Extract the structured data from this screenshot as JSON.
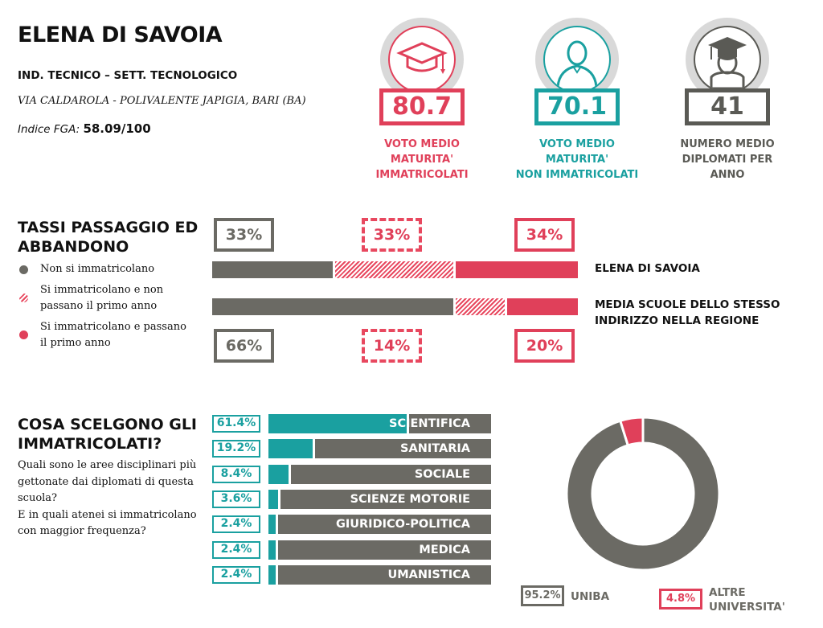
{
  "header": {
    "school": "ELENA DI SAVOIA",
    "track": "IND. TECNICO – SETT. TECNOLOGICO",
    "address": "VIA CALDAROLA - POLIVALENTE JAPIGIA, BARI (BA)",
    "fga_label": "Indice FGA:",
    "fga_value": "58.09/100"
  },
  "kpis": [
    {
      "value": "80.7",
      "label_line1": "VOTO MEDIO MATURITA'",
      "label_line2": "IMMATRICOLATI",
      "color": "#e0405a",
      "icon": "graduation-cap-icon"
    },
    {
      "value": "70.1",
      "label_line1": "VOTO MEDIO MATURITA'",
      "label_line2": "NON IMMATRICOLATI",
      "color": "#1aa0a0",
      "icon": "person-icon"
    },
    {
      "value": "41",
      "label_line1": "NUMERO MEDIO",
      "label_line2": "DIPLOMATI PER ANNO",
      "color": "#5a5a55",
      "icon": "graduate-person-icon"
    }
  ],
  "passage": {
    "title_line1": "TASSI PASSAGGIO ED",
    "title_line2": "ABBANDONO",
    "legend": [
      {
        "line1": "Non si immatricolano",
        "line2": ""
      },
      {
        "line1": "Si immatricolano e non",
        "line2": "passano il primo anno"
      },
      {
        "line1": "Si immatricolano e passano",
        "line2": "il primo anno"
      }
    ],
    "rows": [
      {
        "label_line1": "ELENA DI SAVOIA",
        "label_line2": "",
        "values": [
          33,
          33,
          34
        ],
        "labels": [
          "33%",
          "33%",
          "34%"
        ]
      },
      {
        "label_line1": "MEDIA SCUOLE DELLO STESSO",
        "label_line2": "INDIRIZZO NELLA REGIONE",
        "values": [
          66,
          14,
          20
        ],
        "labels": [
          "66%",
          "14%",
          "20%"
        ]
      }
    ]
  },
  "choices": {
    "title_line1": "COSA SCELGONO GLI",
    "title_line2": "IMMATRICOLATI?",
    "desc_lines": [
      "Quali sono le aree disciplinari più",
      "gettonate dai diplomati di questa",
      "scuola?",
      "E in quali atenei si immatricolano",
      "con maggior frequenza?"
    ]
  },
  "colors": {
    "grey": "#6b6a64",
    "red": "#e0405a",
    "teal": "#1aa0a0"
  },
  "chart_data": [
    {
      "type": "bar",
      "categories": [
        "SCIENTIFICA",
        "SANITARIA",
        "SOCIALE",
        "SCIENZE MOTORIE",
        "GIURIDICO-POLITICA",
        "MEDICA",
        "UMANISTICA"
      ],
      "values": [
        61.4,
        19.2,
        8.4,
        3.6,
        2.4,
        2.4,
        2.4
      ],
      "labels": [
        "61.4%",
        "19.2%",
        "8.4%",
        "3.6%",
        "2.4%",
        "2.4%",
        "2.4%"
      ]
    },
    {
      "type": "pie",
      "categories": [
        "UNIBA",
        "ALTRE UNIVERSITA'"
      ],
      "values": [
        95.2,
        4.8
      ],
      "labels": [
        "95.2%",
        "4.8%"
      ]
    }
  ]
}
